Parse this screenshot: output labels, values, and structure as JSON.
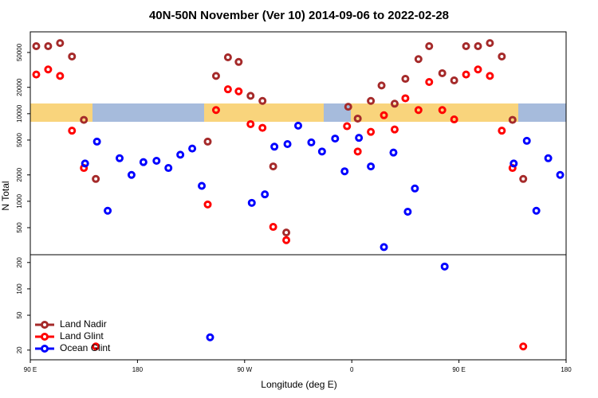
{
  "chart_data": {
    "type": "scatter",
    "title": "40N-50N November (Ver 10)   2014-09-06 to 2022-02-28",
    "x_label": "Longitude (deg E)",
    "y_label": "N Total",
    "log_y": true,
    "legend_position": "lower left",
    "xlim": [
      90,
      540
    ],
    "xticks": [
      {
        "value": 90,
        "label": "90 E"
      },
      180,
      {
        "value": 270,
        "label": "90 W"
      },
      {
        "value": 360,
        "label": "0"
      },
      {
        "value": 450,
        "label": "90 E"
      },
      {
        "value": 540,
        "label": "180"
      }
    ],
    "ylim": [
      15.5,
      86000
    ],
    "yticks": [
      20,
      50,
      100,
      200,
      500,
      1000,
      2000,
      5000,
      10000,
      20000,
      50000
    ],
    "series": [
      {
        "name": "Land Nadir",
        "color": "#a52a2a",
        "x": [
          95,
          105,
          115,
          125,
          135,
          145,
          239,
          246,
          256,
          265,
          275,
          285,
          294,
          305,
          357,
          365,
          376,
          385,
          396,
          405,
          416,
          425,
          436,
          446,
          456,
          466,
          476,
          486,
          495,
          504
        ],
        "values": [
          59000,
          59000,
          64000,
          45000,
          8500,
          1800,
          4800,
          27000,
          44000,
          39000,
          16000,
          14000,
          2500,
          440,
          12000,
          8800,
          14000,
          21000,
          13000,
          25000,
          42000,
          59000,
          29000,
          24000,
          59000,
          59000,
          64000,
          45000,
          8500,
          1800
        ]
      },
      {
        "name": "Land Glint",
        "color": "#ff0000",
        "x": [
          95,
          105,
          115,
          125,
          135,
          145,
          239,
          246,
          256,
          265,
          275,
          285,
          294,
          305,
          356,
          365,
          376,
          387,
          396,
          405,
          416,
          425,
          436,
          446,
          456,
          466,
          476,
          486,
          495,
          504
        ],
        "values": [
          28000,
          32000,
          27000,
          6400,
          2400,
          22,
          920,
          11000,
          19000,
          18000,
          7600,
          6900,
          510,
          360,
          7200,
          3700,
          6200,
          9600,
          6600,
          15000,
          11000,
          23000,
          11000,
          8600,
          28000,
          32000,
          27000,
          6400,
          2400,
          22
        ]
      },
      {
        "name": "Ocean Glint",
        "color": "#0000ff",
        "x": [
          136,
          146,
          155,
          165,
          175,
          185,
          196,
          206,
          216,
          226,
          234,
          241,
          276,
          287,
          295,
          306,
          315,
          326,
          335,
          346,
          354,
          366,
          376,
          387,
          395,
          407,
          413,
          438,
          496,
          507,
          515,
          525,
          535
        ],
        "values": [
          2700,
          4800,
          780,
          3100,
          2000,
          2800,
          2900,
          2400,
          3400,
          4000,
          1500,
          28,
          960,
          1200,
          4200,
          4500,
          7300,
          4700,
          3700,
          5200,
          2200,
          5300,
          2500,
          300,
          3600,
          760,
          1400,
          180,
          2700,
          4900,
          780,
          3100,
          2000
        ]
      }
    ]
  }
}
